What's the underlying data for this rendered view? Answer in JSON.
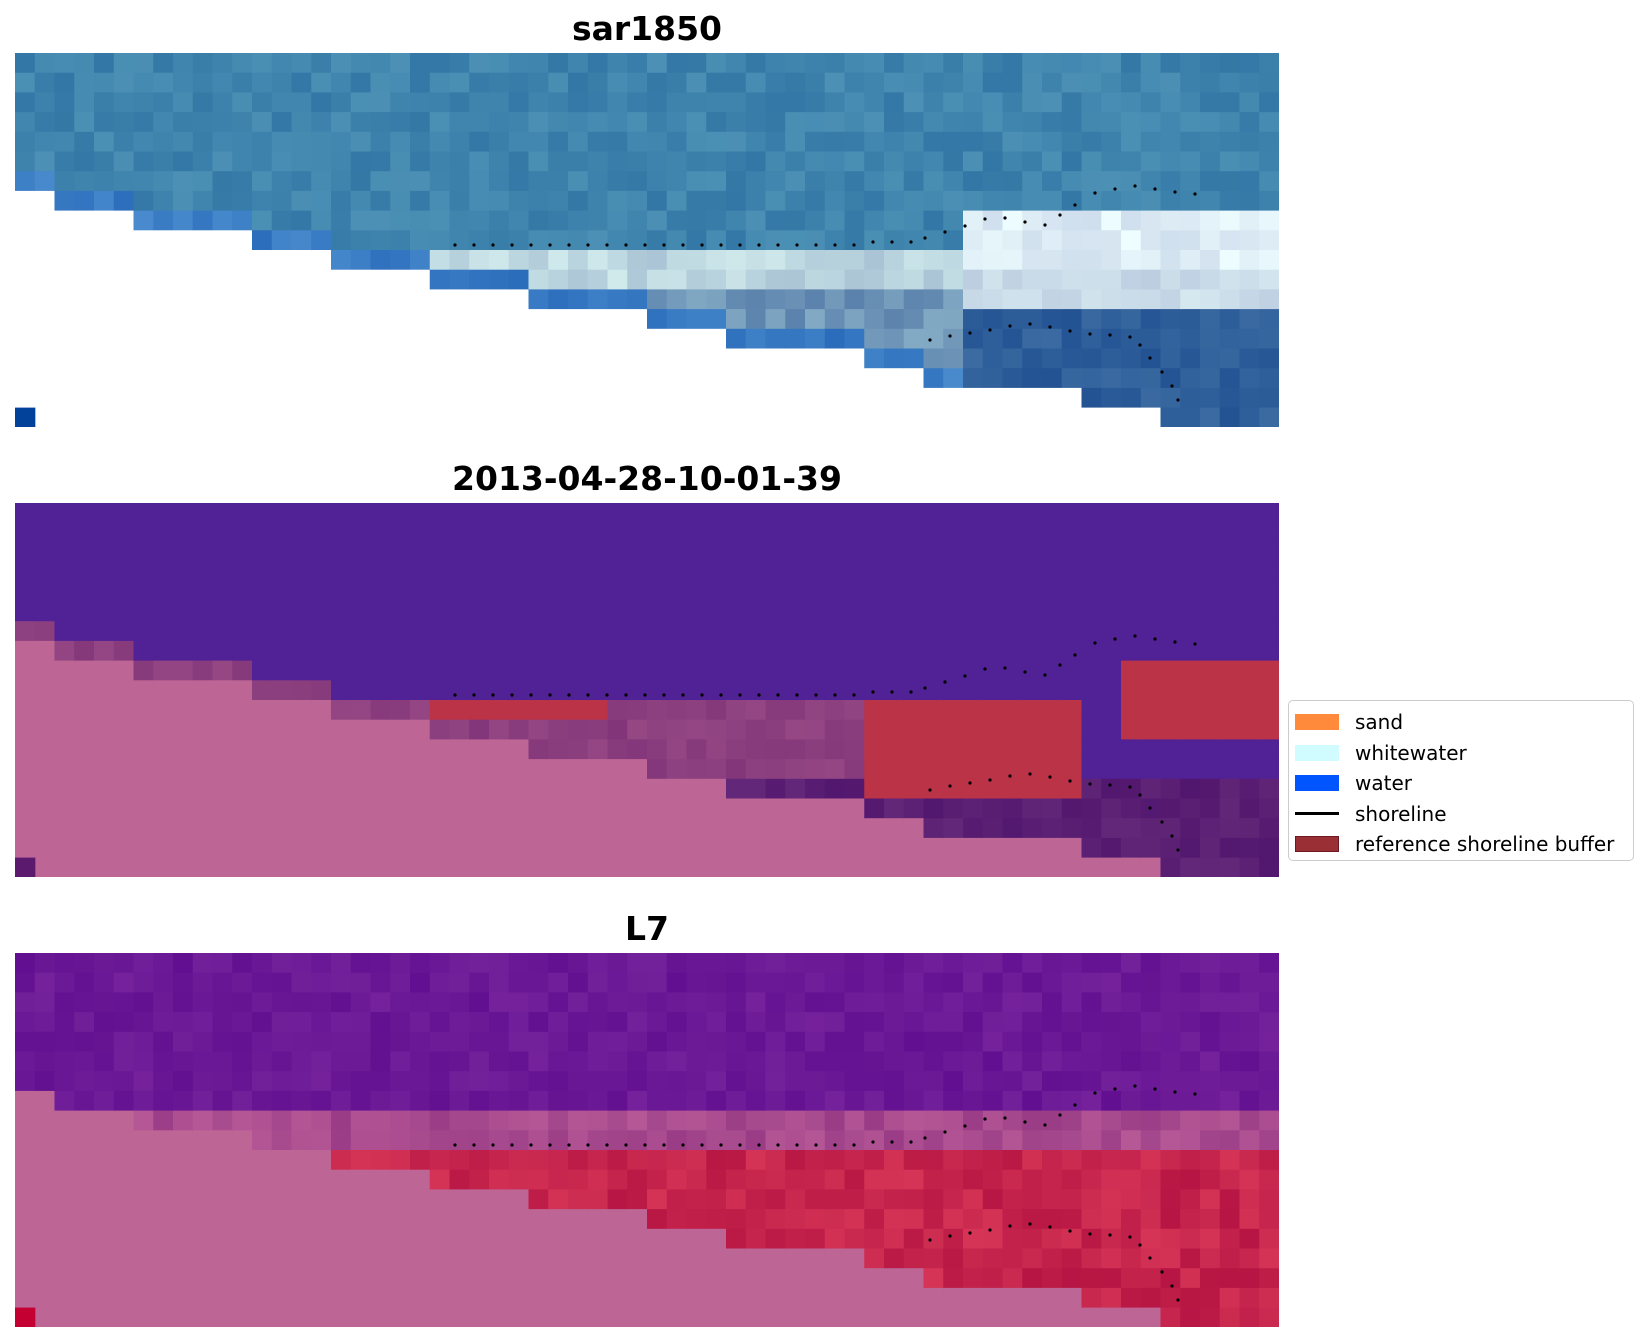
{
  "chart_data": {
    "type": "heatmap",
    "panels": [
      {
        "title": "sar1850",
        "colors": {
          "water": "#3f84ad",
          "land": "#ffffff",
          "beach": "#e8eef0",
          "surf": "#bcd6e0",
          "deep": "#2f5f9a",
          "speck": "#03429a"
        }
      },
      {
        "title": "2013-04-28-10-01-39",
        "colors": {
          "water": "#512196",
          "land": "#bd6595",
          "buffer": "#bb3347",
          "mixed": "#8b3e7e",
          "dark": "#5a1f73",
          "speck": "#5c1a6f"
        }
      },
      {
        "title": "L7",
        "colors": {
          "water": "#6b1896",
          "land": "#bd6595",
          "sand": "#c6254d",
          "mixed": "#a84a8e",
          "speck": "#c40033"
        }
      }
    ],
    "legend": {
      "placement": "center-right",
      "entries": [
        {
          "label": "sand",
          "color": "#ff8a3c",
          "kind": "patch"
        },
        {
          "label": "whitewater",
          "color": "#d0fcff",
          "kind": "patch"
        },
        {
          "label": "water",
          "color": "#0055ff",
          "kind": "patch"
        },
        {
          "label": "shoreline",
          "color": "#000000",
          "kind": "line"
        },
        {
          "label": "reference shoreline buffer",
          "color": "#9b2f36",
          "kind": "patch"
        }
      ]
    },
    "shoreline_color": "#000000"
  }
}
